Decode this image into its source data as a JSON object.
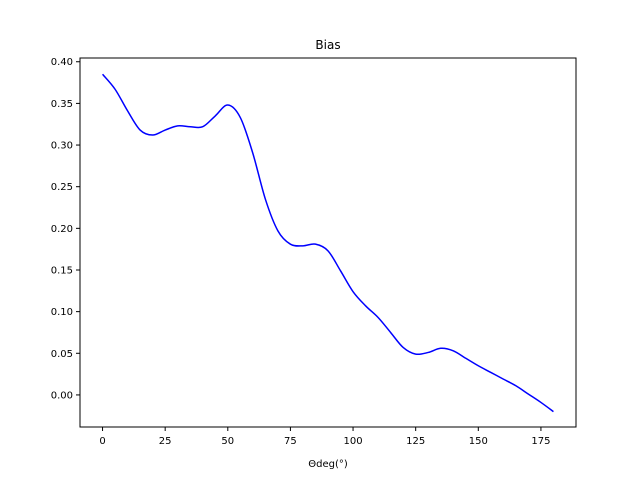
{
  "chart_data": {
    "type": "line",
    "title": "Bias",
    "xlabel": "Θdeg(°)",
    "ylabel": "",
    "xlim": [
      -9,
      189
    ],
    "ylim": [
      -0.0385,
      0.4045
    ],
    "xticks": [
      0,
      25,
      50,
      75,
      100,
      125,
      150,
      175
    ],
    "yticks": [
      0.0,
      0.05,
      0.1,
      0.15,
      0.2,
      0.25,
      0.3,
      0.35,
      0.4
    ],
    "ytick_labels": [
      "0.00",
      "0.05",
      "0.10",
      "0.15",
      "0.20",
      "0.25",
      "0.30",
      "0.35",
      "0.40"
    ],
    "grid": false,
    "series": [
      {
        "color": "#0000ff",
        "x": [
          0,
          5,
          10,
          15,
          20,
          25,
          30,
          35,
          40,
          45,
          50,
          55,
          60,
          65,
          70,
          75,
          80,
          85,
          90,
          95,
          100,
          105,
          110,
          115,
          120,
          125,
          130,
          135,
          140,
          145,
          150,
          155,
          160,
          165,
          170,
          175,
          180
        ],
        "y": [
          0.385,
          0.367,
          0.341,
          0.318,
          0.312,
          0.318,
          0.323,
          0.322,
          0.322,
          0.335,
          0.348,
          0.333,
          0.29,
          0.235,
          0.197,
          0.181,
          0.179,
          0.181,
          0.173,
          0.149,
          0.124,
          0.107,
          0.093,
          0.075,
          0.057,
          0.049,
          0.051,
          0.056,
          0.053,
          0.044,
          0.035,
          0.027,
          0.019,
          0.011,
          0.001,
          -0.009,
          -0.02
        ]
      }
    ]
  }
}
